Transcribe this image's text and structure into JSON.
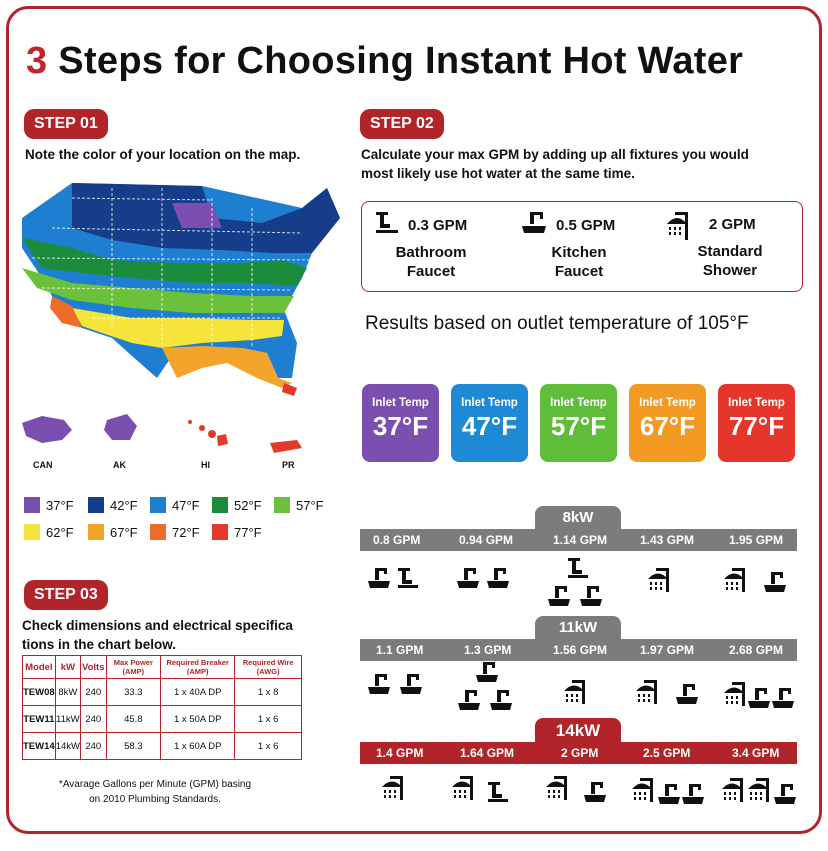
{
  "title": {
    "number": "3",
    "text": " Steps for Choosing Instant Hot Water"
  },
  "step1": {
    "tag": "STEP 01",
    "desc": "Note the color of your location on the map.",
    "map_labels": [
      "CAN",
      "AK",
      "HI",
      "PR"
    ],
    "legend": [
      {
        "label": "37°F",
        "color": "#7b4fb0"
      },
      {
        "label": "42°F",
        "color": "#163d8a"
      },
      {
        "label": "47°F",
        "color": "#1e7fd0"
      },
      {
        "label": "52°F",
        "color": "#1b8c3c"
      },
      {
        "label": "57°F",
        "color": "#6cc13a"
      },
      {
        "label": "62°F",
        "color": "#f5e43a"
      },
      {
        "label": "67°F",
        "color": "#f3a42a"
      },
      {
        "label": "72°F",
        "color": "#ef6c2a"
      },
      {
        "label": "77°F",
        "color": "#e33a2b"
      }
    ]
  },
  "step2": {
    "tag": "STEP 02",
    "desc_line1": "Calculate your max GPM by adding up all fixtures you would",
    "desc_line2": "most likely use hot water at the same time.",
    "fixtures": [
      {
        "gpm": "0.3 GPM",
        "line1": "Bathroom",
        "line2": "Faucet",
        "icon": "bathroom-faucet-icon"
      },
      {
        "gpm": "0.5 GPM",
        "line1": "Kitchen",
        "line2": "Faucet",
        "icon": "kitchen-faucet-icon"
      },
      {
        "gpm": "2 GPM",
        "line1": "Standard",
        "line2": "Shower",
        "icon": "shower-icon"
      }
    ],
    "results": "Results based on outlet temperature of 105°F",
    "temps": [
      {
        "label": "Inlet Temp",
        "value": "37°F",
        "color": "#7b4fb0"
      },
      {
        "label": "Inlet Temp",
        "value": "47°F",
        "color": "#1e8ad6"
      },
      {
        "label": "Inlet Temp",
        "value": "57°F",
        "color": "#5fbd3a"
      },
      {
        "label": "Inlet Temp",
        "value": "67°F",
        "color": "#f39a25"
      },
      {
        "label": "Inlet Temp",
        "value": "77°F",
        "color": "#e5362b"
      }
    ],
    "models": [
      {
        "kw": "8kW",
        "theme": "gray",
        "gpms": [
          "0.8 GPM",
          "0.94 GPM",
          "1.14 GPM",
          "1.43 GPM",
          "1.95 GPM"
        ]
      },
      {
        "kw": "11kW",
        "theme": "gray",
        "gpms": [
          "1.1 GPM",
          "1.3 GPM",
          "1.56 GPM",
          "1.97 GPM",
          "2.68 GPM"
        ]
      },
      {
        "kw": "14kW",
        "theme": "red",
        "gpms": [
          "1.4 GPM",
          "1.64 GPM",
          "2 GPM",
          "2.5 GPM",
          "3.4 GPM"
        ]
      }
    ]
  },
  "step3": {
    "tag": "STEP 03",
    "desc_line1": "Check dimensions and electrical specifica",
    "desc_line2": "tions in the chart below.",
    "headers": [
      "Model",
      "kW",
      "Volts",
      "Max Power (AMP)",
      "Required Breaker (AMP)",
      "Required Wire (AWG)"
    ],
    "rows": [
      [
        "TEW08",
        "8kW",
        "240",
        "33.3",
        "1 x 40A DP",
        "1 x 8"
      ],
      [
        "TEW11",
        "11kW",
        "240",
        "45.8",
        "1 x 50A DP",
        "1 x 6"
      ],
      [
        "TEW14",
        "14kW",
        "240",
        "58.3",
        "1 x 60A DP",
        "1 x 6"
      ]
    ],
    "footnote_line1": "*Avarage Gallons per Minute (GPM) basing",
    "footnote_line2": "on 2010 Plumbing Standards."
  }
}
